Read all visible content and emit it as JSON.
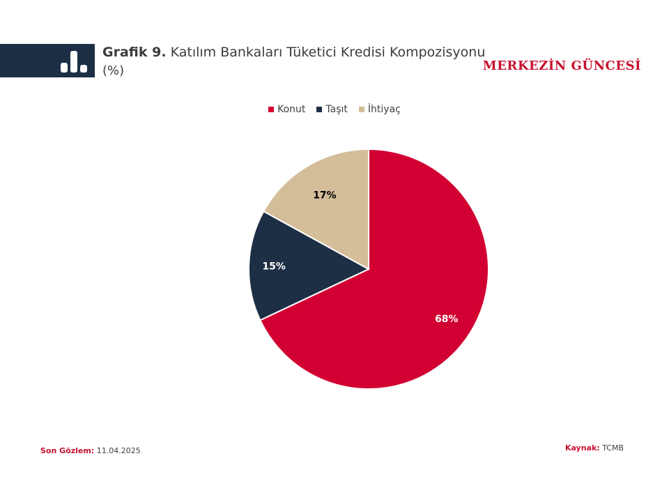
{
  "header": {
    "figure_number": "Grafik 9.",
    "title": "Katılım Bankaları Tüketici Kredisi Kompozisyonu",
    "unit": "(%)",
    "brand": "MERKEZİN GÜNCESİ",
    "band_color": "#1d2f45",
    "icon": "bar-chart-icon"
  },
  "chart_data": {
    "type": "pie",
    "title": "Katılım Bankaları Tüketici Kredisi Kompozisyonu",
    "unit": "%",
    "legend_position": "top",
    "slices": [
      {
        "name": "Konut",
        "value": 68,
        "label": "68%",
        "color": "#d20032",
        "label_color": "#ffffff"
      },
      {
        "name": "Taşıt",
        "value": 15,
        "label": "15%",
        "color": "#1d2f45",
        "label_color": "#ffffff"
      },
      {
        "name": "İhtiyaç",
        "value": 17,
        "label": "17%",
        "color": "#d4bd99",
        "label_color": "#000000"
      }
    ]
  },
  "footer": {
    "last_obs_label": "Son Gözlem:",
    "last_obs_value": "11.04.2025",
    "source_label": "Kaynak:",
    "source_value": "TCMB",
    "accent_color": "#c6102e"
  }
}
